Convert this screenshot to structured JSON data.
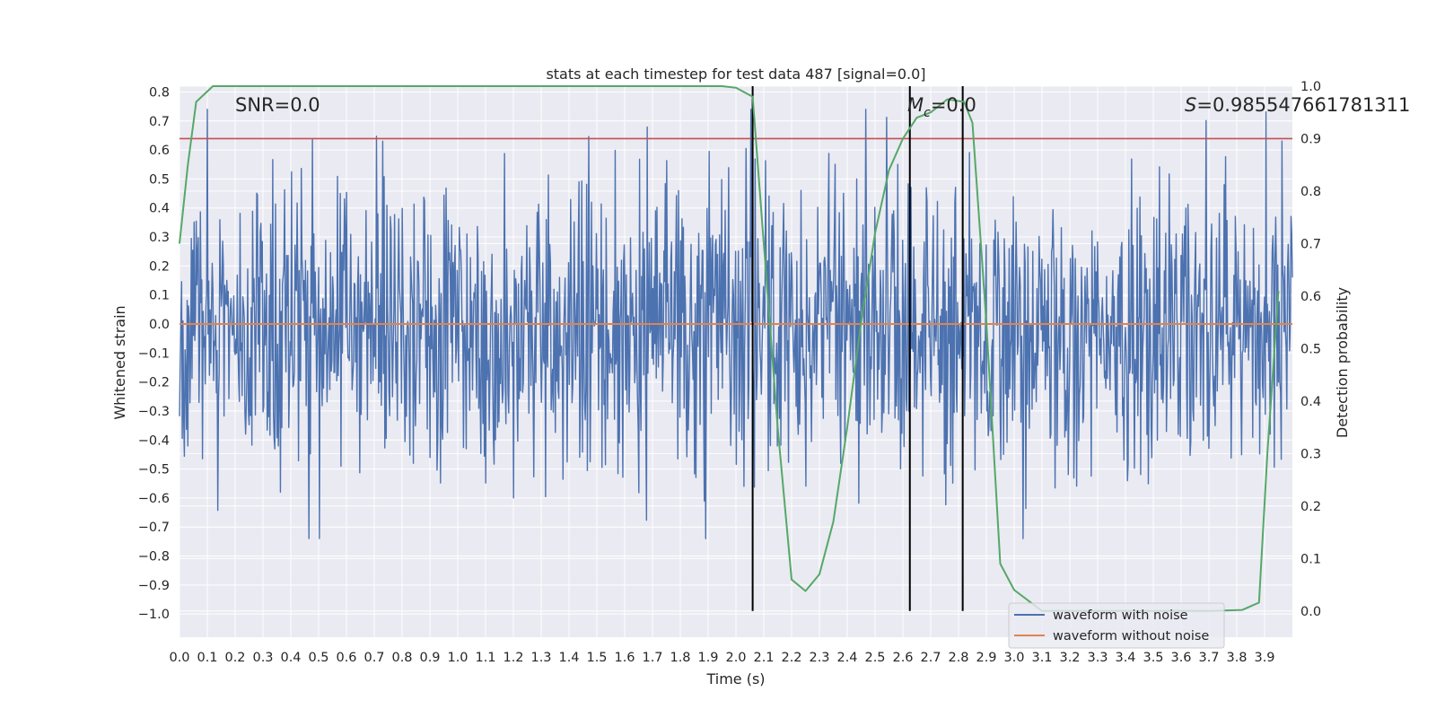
{
  "chart_data": {
    "type": "line",
    "title": "stats at each timestep for test data 487 [signal=0.0]",
    "xlabel": "Time (s)",
    "ylabel": "Whitened strain",
    "y2label": "Detection probability",
    "xlim": [
      0.0,
      4.0
    ],
    "ylim": [
      -1.08,
      0.82
    ],
    "y2lim": [
      -0.05,
      1.0
    ],
    "x_ticks": [
      "0.0",
      "0.1",
      "0.2",
      "0.3",
      "0.4",
      "0.5",
      "0.6",
      "0.7",
      "0.8",
      "0.9",
      "1.0",
      "1.1",
      "1.2",
      "1.3",
      "1.4",
      "1.5",
      "1.6",
      "1.7",
      "1.8",
      "1.9",
      "2.0",
      "2.1",
      "2.2",
      "2.3",
      "2.4",
      "2.5",
      "2.6",
      "2.7",
      "2.8",
      "2.9",
      "3.0",
      "3.1",
      "3.2",
      "3.3",
      "3.4",
      "3.5",
      "3.6",
      "3.7",
      "3.8",
      "3.9"
    ],
    "y_ticks": [
      "0.8",
      "0.7",
      "0.6",
      "0.5",
      "0.4",
      "0.3",
      "0.2",
      "0.1",
      "0.0",
      "−0.1",
      "−0.2",
      "−0.3",
      "−0.4",
      "−0.5",
      "−0.6",
      "−0.7",
      "−0.8",
      "−0.9",
      "−1.0"
    ],
    "y2_ticks": [
      "1.0",
      "0.9",
      "0.8",
      "0.7",
      "0.6",
      "0.5",
      "0.4",
      "0.3",
      "0.2",
      "0.1",
      "0.0"
    ],
    "series": [
      {
        "name": "waveform with noise",
        "color": "#4c72b0",
        "kind": "noise",
        "n_points": 1600,
        "seed": 487,
        "typical_amplitude": 0.3,
        "max_abs": 0.74
      },
      {
        "name": "waveform without noise",
        "color": "#dd8452",
        "kind": "constant",
        "value": 0.0
      },
      {
        "name": "detection probability",
        "color": "#55a868",
        "axis": "right",
        "x": [
          0.0,
          0.03,
          0.06,
          0.12,
          0.2,
          0.4,
          1.0,
          1.5,
          1.9,
          1.95,
          2.0,
          2.06,
          2.1,
          2.15,
          2.2,
          2.25,
          2.3,
          2.35,
          2.4,
          2.45,
          2.5,
          2.55,
          2.6,
          2.65,
          2.7,
          2.76,
          2.82,
          2.85,
          2.9,
          2.95,
          3.0,
          3.1,
          3.2,
          3.4,
          3.6,
          3.7,
          3.82,
          3.88,
          3.91,
          3.95
        ],
        "y": [
          0.7,
          0.85,
          0.97,
          1.0,
          1.0,
          1.0,
          1.0,
          1.0,
          1.0,
          1.0,
          0.997,
          0.98,
          0.7,
          0.35,
          0.06,
          0.038,
          0.07,
          0.17,
          0.35,
          0.55,
          0.72,
          0.84,
          0.9,
          0.94,
          0.95,
          0.975,
          0.97,
          0.93,
          0.55,
          0.09,
          0.04,
          0.0,
          0.0,
          0.0,
          0.0,
          0.0,
          0.002,
          0.016,
          0.3,
          0.61
        ]
      }
    ],
    "threshold_line": {
      "value": 0.9,
      "axis": "right",
      "color": "#c44e52"
    },
    "vertical_lines": [
      2.06,
      2.625,
      2.815
    ],
    "annotations": {
      "snr": "SNR=0.0",
      "mc_symbol": "M",
      "mc_sub": "c",
      "mc_value": "=0.0",
      "s_symbol": "S",
      "s_value": "=0.985547661781311"
    },
    "legend": {
      "location": "lower-right",
      "entries": [
        {
          "label": "waveform with noise",
          "color": "#4c72b0"
        },
        {
          "label": "waveform without noise",
          "color": "#dd8452"
        }
      ]
    },
    "colors": {
      "plot_bg": "#eaeaf2",
      "grid": "#ffffff",
      "marker": "#000000"
    }
  }
}
